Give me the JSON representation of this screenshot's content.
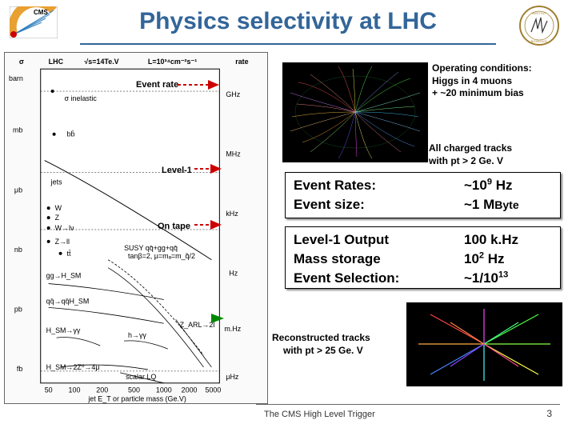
{
  "title": "Physics selectivity at LHC",
  "logos": {
    "left_name": "cms-logo",
    "right_name": "institute-logo"
  },
  "annotations": {
    "event_rate": "Event rate",
    "level1": "Level-1",
    "on_tape": "On tape"
  },
  "operating_conditions": {
    "l1": "Operating conditions:",
    "l2": "Higgs in 4 muons",
    "l3": "+ ~20 minimum bias"
  },
  "tracks_caption": {
    "l1": "All charged tracks",
    "l2": "with pt > 2 Ge. V"
  },
  "stats1": [
    {
      "label": "Event Rates:",
      "value_html": "~10<sup>9</sup> Hz"
    },
    {
      "label": "Event size:",
      "value_html": "~1 M<span class='unit-small'>Byte</span>"
    }
  ],
  "stats2": [
    {
      "label": "Level-1 Output",
      "value_html": "100 k.Hz"
    },
    {
      "label": "Mass storage",
      "value_html": "10<sup>2</sup> Hz"
    },
    {
      "label": "Event Selection:",
      "value_html": "~1/10<sup>13</sup>"
    }
  ],
  "recon_caption": {
    "l1": "Reconstructed tracks",
    "l2": "with pt > 25 Ge. V"
  },
  "footer": "The CMS High Level Trigger",
  "page_number": "3",
  "chart": {
    "y_axis_units": [
      "barn",
      "mb",
      "μb",
      "nb",
      "pb",
      "fb"
    ],
    "right_axis_units": [
      "GHz",
      "MHz",
      "kHz",
      "Hz",
      "m.Hz",
      "μHz"
    ],
    "y_label": "σ",
    "right_label": "rate",
    "top_labels": {
      "lhc": "LHC",
      "sqrt_s": "√s=14Te.V",
      "lumi": "L=10³⁴cm⁻²s⁻¹"
    },
    "x_label": "jet E_T or particle mass (Ge.V)",
    "x_ticks": [
      "50",
      "100",
      "200",
      "500",
      "1000",
      "2000",
      "5000"
    ],
    "processes": [
      "σ inelastic",
      "bb̄",
      "jets",
      "W",
      "Z",
      "W→lν",
      "Z→ll",
      "tt̄",
      "gg→H_SM",
      "qq̄→qq̄H_SM",
      "H_SM→γγ",
      "H_SM→2Z⁰→4μ",
      "h→γγ",
      "Z_ARL→2l",
      "scalar LQ",
      "SUSY qq̄+gg+qq̄"
    ],
    "susy_params": "tanβ=2, μ=mₐ=m_q̃/2",
    "colors": {
      "title": "#336699",
      "arrow_red": "#cc0000",
      "arrow_green": "#008800",
      "box_border": "#000000",
      "bg_event": "#000000"
    }
  }
}
